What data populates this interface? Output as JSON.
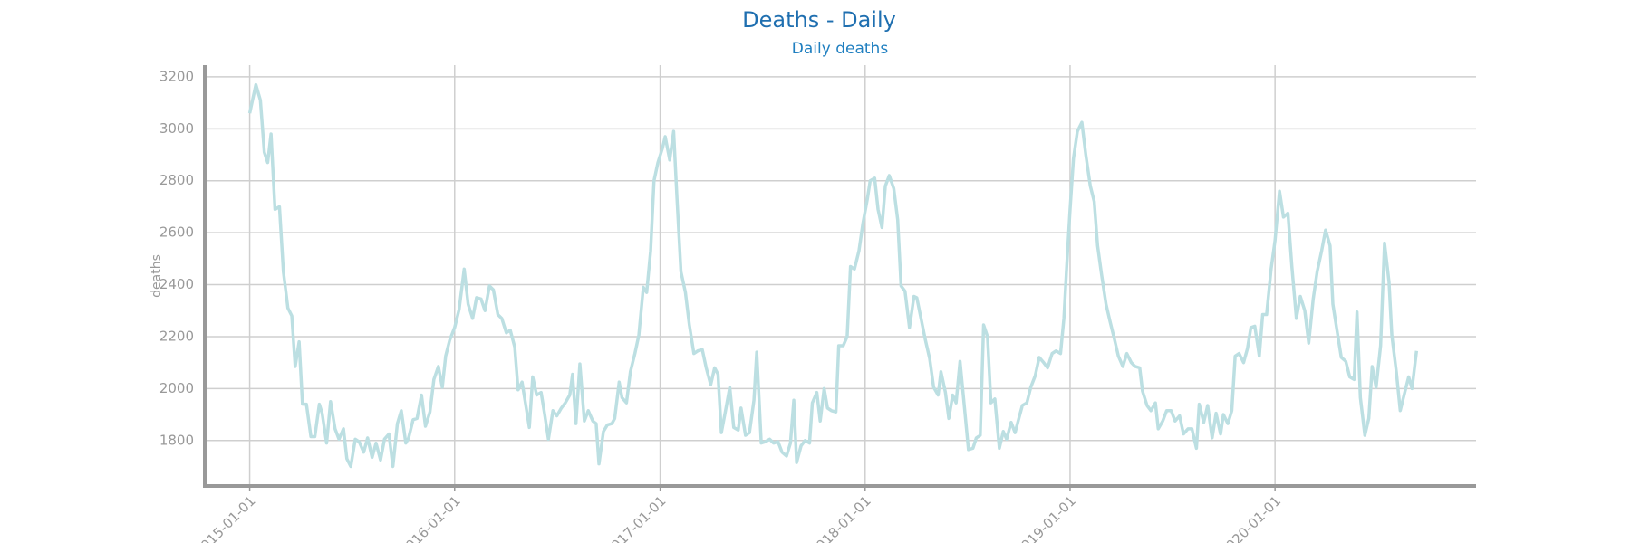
{
  "chart_data": {
    "type": "line",
    "title": "Deaths - Daily",
    "subtitle": "Daily deaths",
    "y_label": "deaths",
    "color": "#bcdfe2",
    "grid": true,
    "xlim": [
      "2014-10-13",
      "2020-12-24"
    ],
    "xticks": [
      "2015-01-01",
      "2016-01-01",
      "2017-01-01",
      "2018-01-01",
      "2019-01-01",
      "2020-01-01"
    ],
    "ylim": [
      1625,
      3245
    ],
    "yticks": [
      1800,
      2000,
      2200,
      2400,
      2600,
      2800,
      3000,
      3200
    ],
    "x": [
      "2015-01-01",
      "2015-01-12",
      "2015-01-20",
      "2015-01-27",
      "2015-02-02",
      "2015-02-08",
      "2015-02-15",
      "2015-02-23",
      "2015-03-02",
      "2015-03-10",
      "2015-03-17",
      "2015-03-23",
      "2015-03-30",
      "2015-04-05",
      "2015-04-12",
      "2015-04-20",
      "2015-04-27",
      "2015-05-05",
      "2015-05-10",
      "2015-05-18",
      "2015-05-25",
      "2015-06-02",
      "2015-06-09",
      "2015-06-17",
      "2015-06-23",
      "2015-06-30",
      "2015-07-08",
      "2015-07-15",
      "2015-07-23",
      "2015-07-30",
      "2015-08-07",
      "2015-08-14",
      "2015-08-22",
      "2015-08-29",
      "2015-09-06",
      "2015-09-13",
      "2015-09-21",
      "2015-09-28",
      "2015-10-06",
      "2015-10-11",
      "2015-10-19",
      "2015-10-26",
      "2015-11-03",
      "2015-11-10",
      "2015-11-18",
      "2015-11-25",
      "2015-12-03",
      "2015-12-10",
      "2015-12-16",
      "2015-12-23",
      "2016-01-01",
      "2016-01-09",
      "2016-01-18",
      "2016-01-25",
      "2016-02-02",
      "2016-02-09",
      "2016-02-17",
      "2016-02-24",
      "2016-03-03",
      "2016-03-10",
      "2016-03-18",
      "2016-03-25",
      "2016-04-02",
      "2016-04-09",
      "2016-04-17",
      "2016-04-23",
      "2016-04-30",
      "2016-05-06",
      "2016-05-13",
      "2016-05-19",
      "2016-05-26",
      "2016-06-03",
      "2016-06-09",
      "2016-06-16",
      "2016-06-24",
      "2016-07-01",
      "2016-07-09",
      "2016-07-16",
      "2016-07-24",
      "2016-07-29",
      "2016-08-04",
      "2016-08-11",
      "2016-08-19",
      "2016-08-26",
      "2016-09-03",
      "2016-09-09",
      "2016-09-14",
      "2016-09-22",
      "2016-09-29",
      "2016-10-07",
      "2016-10-12",
      "2016-10-20",
      "2016-10-25",
      "2016-11-02",
      "2016-11-09",
      "2016-11-17",
      "2016-11-24",
      "2016-12-02",
      "2016-12-08",
      "2016-12-15",
      "2016-12-21",
      "2016-12-28",
      "2017-01-05",
      "2017-01-10",
      "2017-01-18",
      "2017-01-25",
      "2017-01-31",
      "2017-02-07",
      "2017-02-15",
      "2017-02-22",
      "2017-03-02",
      "2017-03-09",
      "2017-03-17",
      "2017-03-24",
      "2017-04-01",
      "2017-04-08",
      "2017-04-14",
      "2017-04-20",
      "2017-04-27",
      "2017-05-05",
      "2017-05-12",
      "2017-05-20",
      "2017-05-25",
      "2017-06-02",
      "2017-06-09",
      "2017-06-17",
      "2017-06-22",
      "2017-06-30",
      "2017-07-07",
      "2017-07-15",
      "2017-07-22",
      "2017-07-30",
      "2017-08-06",
      "2017-08-14",
      "2017-08-21",
      "2017-08-27",
      "2017-09-01",
      "2017-09-09",
      "2017-09-16",
      "2017-09-24",
      "2017-09-29",
      "2017-10-07",
      "2017-10-13",
      "2017-10-20",
      "2017-10-26",
      "2017-11-02",
      "2017-11-10",
      "2017-11-15",
      "2017-11-23",
      "2017-11-30",
      "2017-12-06",
      "2017-12-13",
      "2017-12-21",
      "2017-12-28",
      "2018-01-05",
      "2018-01-10",
      "2018-01-18",
      "2018-01-24",
      "2018-01-31",
      "2018-02-06",
      "2018-02-13",
      "2018-02-21",
      "2018-02-28",
      "2018-03-06",
      "2018-03-13",
      "2018-03-21",
      "2018-03-29",
      "2018-04-03",
      "2018-04-11",
      "2018-04-18",
      "2018-04-26",
      "2018-05-03",
      "2018-05-11",
      "2018-05-16",
      "2018-05-24",
      "2018-05-30",
      "2018-06-06",
      "2018-06-12",
      "2018-06-19",
      "2018-06-27",
      "2018-07-04",
      "2018-07-12",
      "2018-07-18",
      "2018-07-25",
      "2018-07-31",
      "2018-08-07",
      "2018-08-13",
      "2018-08-20",
      "2018-08-28",
      "2018-09-04",
      "2018-09-10",
      "2018-09-18",
      "2018-09-25",
      "2018-10-03",
      "2018-10-08",
      "2018-10-16",
      "2018-10-23",
      "2018-10-31",
      "2018-11-07",
      "2018-11-15",
      "2018-11-22",
      "2018-11-30",
      "2018-12-07",
      "2018-12-15",
      "2018-12-21",
      "2018-12-26",
      "2019-01-01",
      "2019-01-07",
      "2019-01-14",
      "2019-01-22",
      "2019-01-29",
      "2019-02-06",
      "2019-02-13",
      "2019-02-19",
      "2019-02-26",
      "2019-03-06",
      "2019-03-13",
      "2019-03-21",
      "2019-03-28",
      "2019-04-05",
      "2019-04-12",
      "2019-04-20",
      "2019-04-27",
      "2019-05-05",
      "2019-05-10",
      "2019-05-18",
      "2019-05-25",
      "2019-06-02",
      "2019-06-07",
      "2019-06-15",
      "2019-06-22",
      "2019-06-30",
      "2019-07-07",
      "2019-07-15",
      "2019-07-22",
      "2019-07-30",
      "2019-08-06",
      "2019-08-14",
      "2019-08-19",
      "2019-08-27",
      "2019-09-03",
      "2019-09-11",
      "2019-09-18",
      "2019-09-26",
      "2019-10-01",
      "2019-10-09",
      "2019-10-16",
      "2019-10-22",
      "2019-10-29",
      "2019-11-06",
      "2019-11-13",
      "2019-11-19",
      "2019-11-26",
      "2019-12-04",
      "2019-12-10",
      "2019-12-17",
      "2019-12-25",
      "2020-01-01",
      "2020-01-09",
      "2020-01-16",
      "2020-01-24",
      "2020-01-31",
      "2020-02-08",
      "2020-02-15",
      "2020-02-23",
      "2020-03-01",
      "2020-03-09",
      "2020-03-16",
      "2020-03-24",
      "2020-03-31",
      "2020-04-08",
      "2020-04-13",
      "2020-04-21",
      "2020-04-28",
      "2020-05-06",
      "2020-05-13",
      "2020-05-21",
      "2020-05-26",
      "2020-06-01",
      "2020-06-09",
      "2020-06-16",
      "2020-06-22",
      "2020-06-29",
      "2020-07-07",
      "2020-07-14",
      "2020-07-22",
      "2020-07-27",
      "2020-08-04",
      "2020-08-11",
      "2020-08-19",
      "2020-08-26",
      "2020-09-01",
      "2020-09-09"
    ],
    "values": [
      3060,
      3170,
      3110,
      2910,
      2870,
      2980,
      2690,
      2700,
      2450,
      2310,
      2280,
      2085,
      2180,
      1940,
      1940,
      1815,
      1815,
      1940,
      1905,
      1790,
      1950,
      1845,
      1805,
      1845,
      1730,
      1700,
      1805,
      1795,
      1755,
      1810,
      1735,
      1790,
      1725,
      1805,
      1825,
      1700,
      1865,
      1915,
      1790,
      1810,
      1880,
      1885,
      1975,
      1855,
      1910,
      2035,
      2085,
      2005,
      2125,
      2185,
      2235,
      2305,
      2460,
      2325,
      2270,
      2350,
      2345,
      2300,
      2395,
      2380,
      2285,
      2270,
      2215,
      2225,
      2160,
      1995,
      2025,
      1945,
      1850,
      2045,
      1975,
      1985,
      1905,
      1805,
      1915,
      1895,
      1925,
      1945,
      1975,
      2055,
      1865,
      2095,
      1875,
      1915,
      1875,
      1865,
      1710,
      1835,
      1860,
      1865,
      1885,
      2025,
      1965,
      1945,
      2065,
      2135,
      2205,
      2390,
      2370,
      2530,
      2800,
      2870,
      2925,
      2970,
      2880,
      2990,
      2730,
      2450,
      2370,
      2245,
      2135,
      2145,
      2150,
      2080,
      2015,
      2080,
      2055,
      1830,
      1910,
      2005,
      1850,
      1840,
      1925,
      1820,
      1830,
      1955,
      2140,
      1790,
      1795,
      1805,
      1790,
      1795,
      1755,
      1740,
      1790,
      1955,
      1715,
      1780,
      1800,
      1790,
      1945,
      1985,
      1875,
      2000,
      1925,
      1915,
      1910,
      2165,
      2165,
      2200,
      2470,
      2460,
      2530,
      2635,
      2730,
      2800,
      2810,
      2690,
      2620,
      2780,
      2820,
      2770,
      2650,
      2395,
      2375,
      2235,
      2355,
      2350,
      2265,
      2190,
      2115,
      2005,
      1975,
      2065,
      1985,
      1885,
      1975,
      1945,
      2105,
      1925,
      1765,
      1770,
      1810,
      1820,
      2245,
      2200,
      1945,
      1960,
      1770,
      1835,
      1805,
      1870,
      1830,
      1895,
      1935,
      1945,
      2005,
      2050,
      2120,
      2100,
      2080,
      2135,
      2145,
      2135,
      2270,
      2470,
      2690,
      2885,
      2990,
      3025,
      2900,
      2780,
      2720,
      2550,
      2440,
      2325,
      2260,
      2190,
      2125,
      2085,
      2135,
      2100,
      2085,
      2080,
      1990,
      1935,
      1915,
      1945,
      1845,
      1875,
      1915,
      1915,
      1875,
      1895,
      1825,
      1845,
      1845,
      1770,
      1940,
      1870,
      1935,
      1810,
      1905,
      1825,
      1900,
      1865,
      1915,
      2125,
      2135,
      2100,
      2155,
      2235,
      2240,
      2125,
      2285,
      2285,
      2460,
      2570,
      2760,
      2660,
      2675,
      2470,
      2270,
      2355,
      2300,
      2175,
      2345,
      2450,
      2530,
      2610,
      2550,
      2325,
      2215,
      2120,
      2105,
      2045,
      2035,
      2295,
      1965,
      1820,
      1885,
      2085,
      2005,
      2165,
      2560,
      2410,
      2205,
      2065,
      1915,
      1985,
      2045,
      2000,
      2145
    ]
  }
}
